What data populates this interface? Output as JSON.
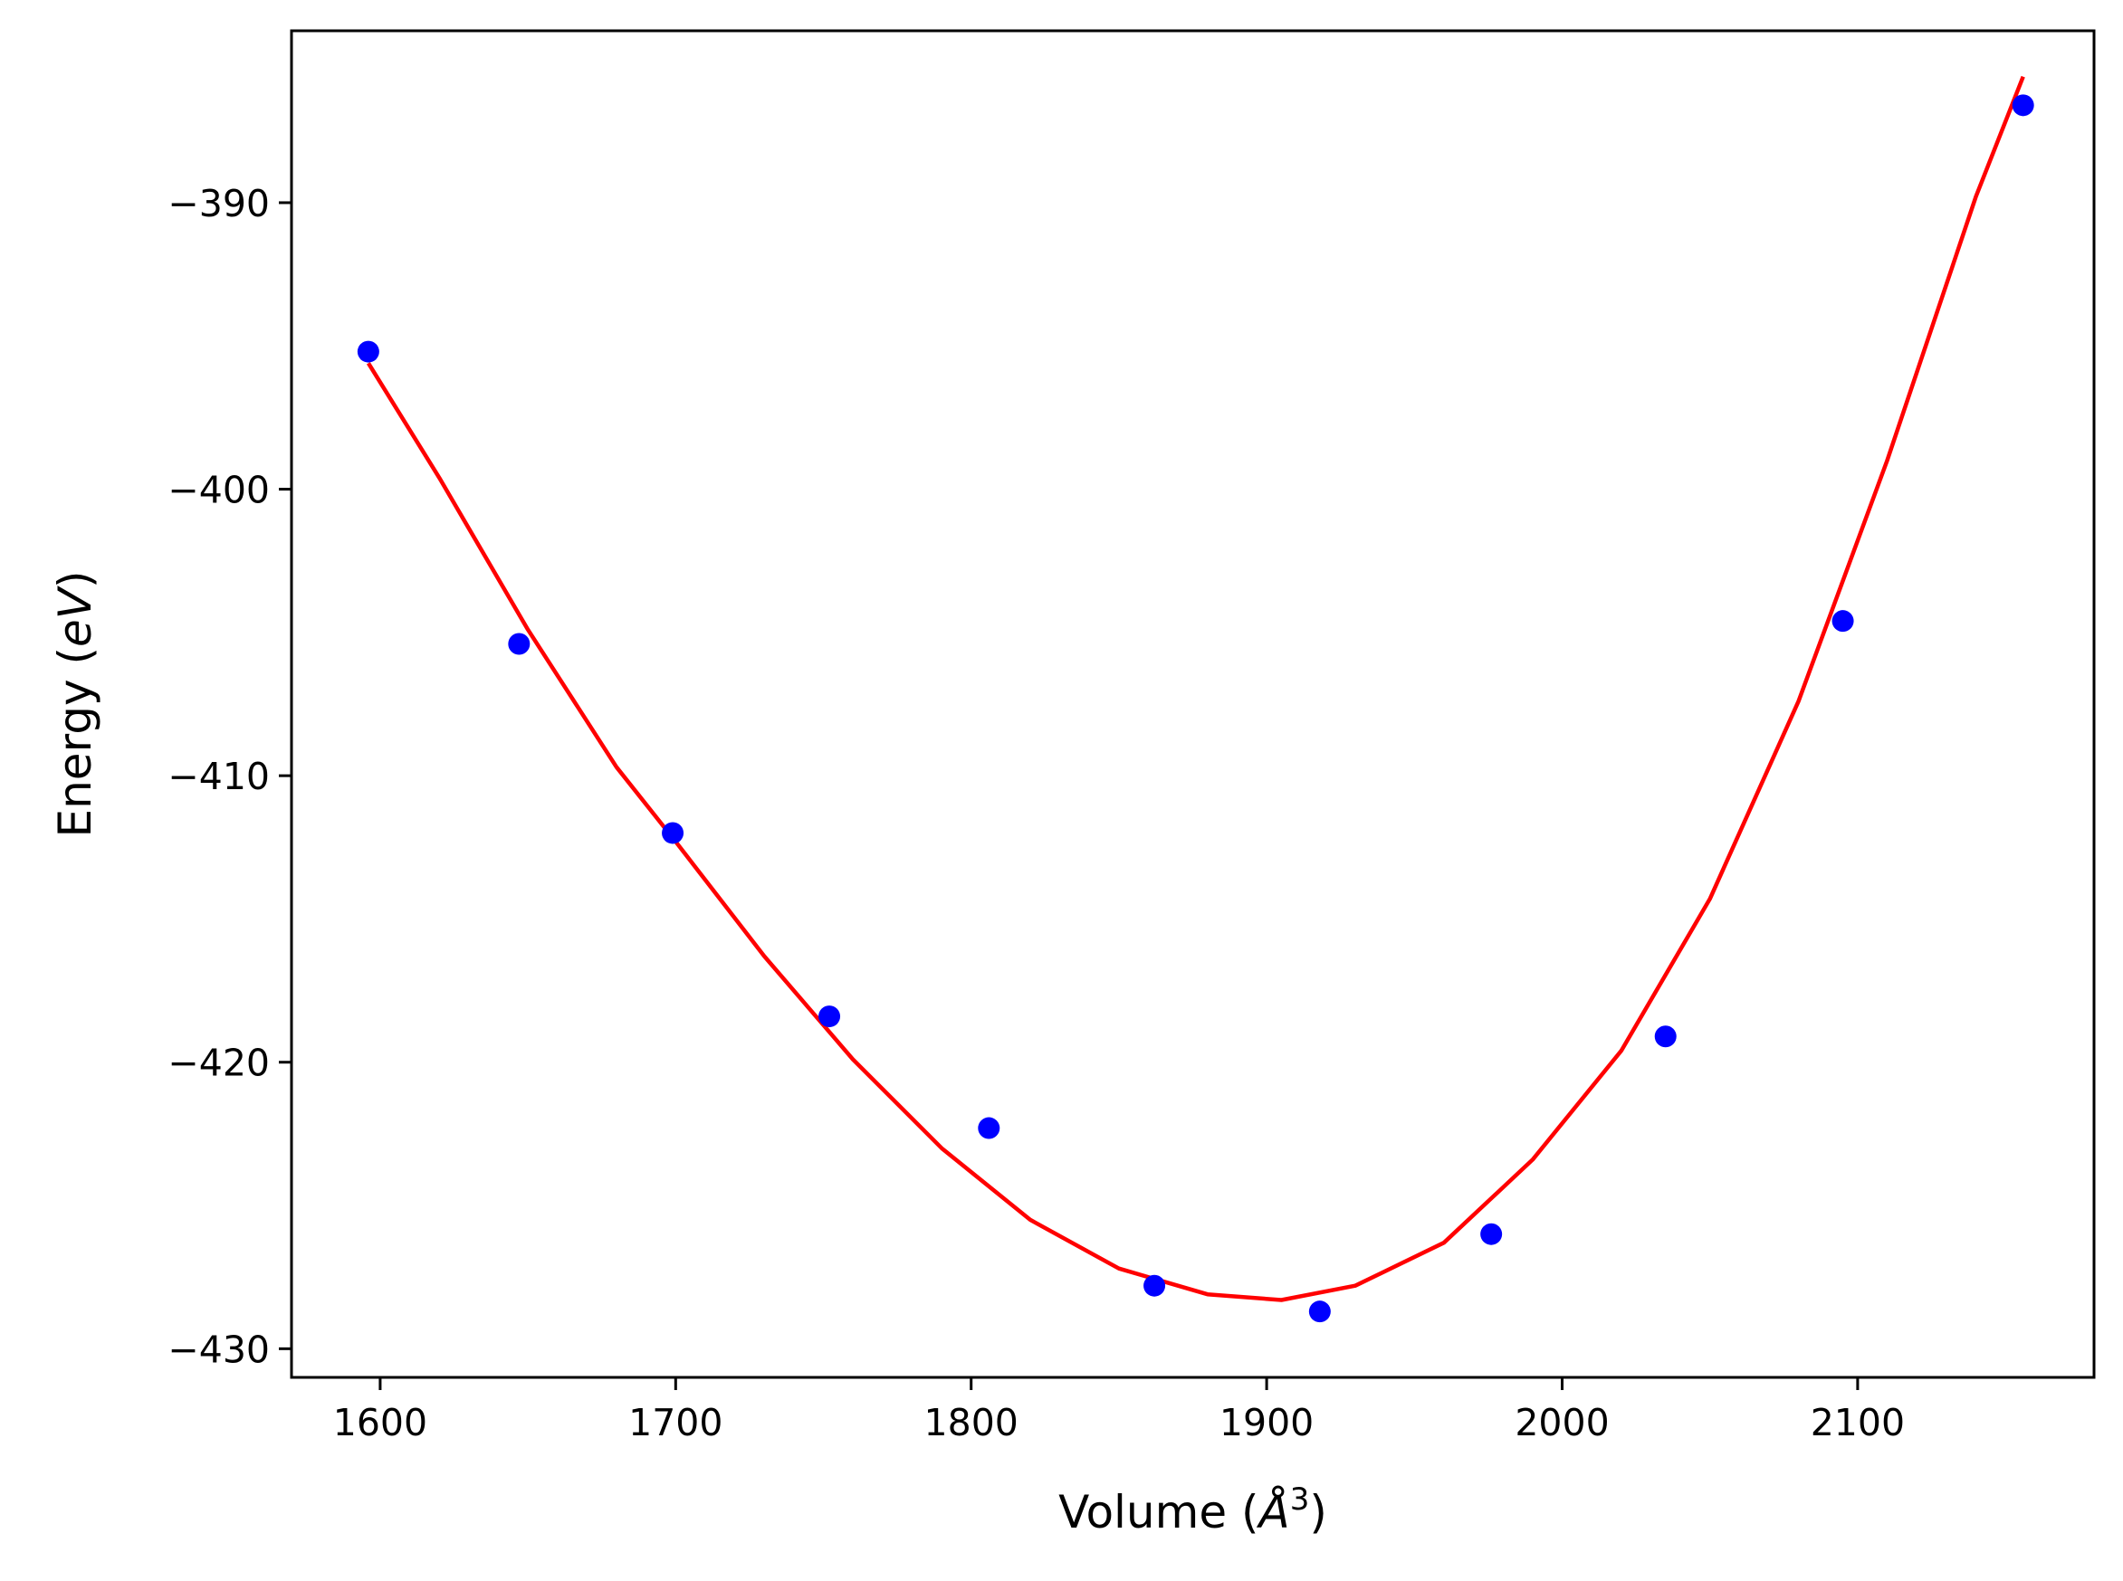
{
  "chart_data": {
    "type": "scatter",
    "title": "",
    "xlabel": "Volume (Å³)",
    "ylabel": "Energy (eV)",
    "xlabel_parts": {
      "pre": "Volume (",
      "unit": "Å",
      "sup": "3",
      "post": ")"
    },
    "ylabel_parts": {
      "pre": "Energy (",
      "unit": "eV",
      "post": ")"
    },
    "xlim": [
      1570,
      2180
    ],
    "ylim": [
      -431,
      -384
    ],
    "xticks": [
      1600,
      1700,
      1800,
      1900,
      2000,
      2100
    ],
    "yticks": [
      -390,
      -400,
      -410,
      -420,
      -430
    ],
    "xtick_labels": [
      "1600",
      "1700",
      "1800",
      "1900",
      "2000",
      "2100"
    ],
    "ytick_labels": [
      "−390",
      "−400",
      "−410",
      "−420",
      "−430"
    ],
    "grid": false,
    "series": [
      {
        "kind": "scatter",
        "color": "#0000ff",
        "x": [
          1596,
          1647,
          1699,
          1752,
          1806,
          1862,
          1918,
          1976,
          2035,
          2095,
          2156
        ],
        "y": [
          -395.2,
          -405.4,
          -412.0,
          -418.4,
          -422.3,
          -427.8,
          -428.7,
          -426.0,
          -419.1,
          -404.6,
          -386.6
        ]
      },
      {
        "kind": "line",
        "color": "#ff0000",
        "x": [
          1596,
          1620,
          1650,
          1680,
          1700,
          1730,
          1760,
          1790,
          1820,
          1850,
          1880,
          1905,
          1930,
          1960,
          1990,
          2020,
          2050,
          2080,
          2110,
          2140,
          2156
        ],
        "y": [
          -395.6,
          -399.6,
          -404.9,
          -409.7,
          -412.3,
          -416.3,
          -419.9,
          -423.0,
          -425.5,
          -427.2,
          -428.1,
          -428.3,
          -427.8,
          -426.3,
          -423.4,
          -419.6,
          -414.3,
          -407.4,
          -399.0,
          -389.8,
          -385.6
        ]
      }
    ]
  }
}
